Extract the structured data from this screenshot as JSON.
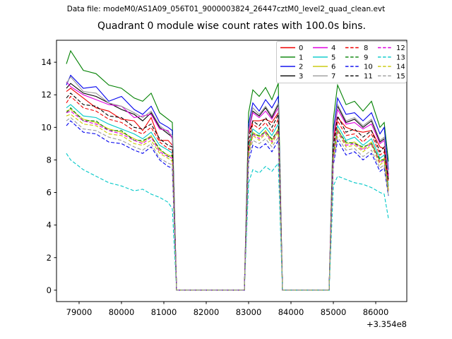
{
  "header": {
    "data_file_label": "Data file: modeM0/AS1A09_056T01_9000003824_26447cztM0_level2_quad_clean.evt"
  },
  "chart": {
    "title": "Quadrant 0 module wise count rates with 100.0s bins."
  },
  "chart_data": {
    "type": "line",
    "title": "Quadrant 0 module wise count rates with 100.0s bins.",
    "xlabel": "",
    "ylabel": "",
    "x_offset_label": "+3.354e8",
    "x_unit_note": "x tick values are seconds offset by +3.354e8",
    "bin_size_s": 100.0,
    "grid": false,
    "legend_position": "upper right",
    "legend_columns": 4,
    "xlim": [
      78467,
      86733
    ],
    "ylim": [
      -0.7,
      15.35
    ],
    "xticks": [
      79000,
      80000,
      81000,
      82000,
      83000,
      84000,
      85000,
      86000
    ],
    "yticks": [
      0,
      2,
      4,
      6,
      8,
      10,
      12,
      14
    ],
    "x": [
      78700,
      78800,
      79100,
      79400,
      79700,
      80000,
      80300,
      80500,
      80700,
      80900,
      81100,
      81200,
      81300,
      82000,
      82900,
      83000,
      83100,
      83250,
      83400,
      83550,
      83700,
      83800,
      84400,
      84900,
      85000,
      85100,
      85300,
      85500,
      85700,
      85900,
      86100,
      86200,
      86300
    ],
    "series": [
      {
        "name": "0",
        "color": "#ee0000",
        "dashed": false,
        "values": [
          12.2,
          12.4,
          11.8,
          11.2,
          11.0,
          10.5,
          10.4,
          9.8,
          10.6,
          9.2,
          9.2,
          8.9,
          0,
          0,
          0,
          9.6,
          10.4,
          10.4,
          10.5,
          10.3,
          10.9,
          0,
          0,
          0,
          9.2,
          10.6,
          10.0,
          9.8,
          9.7,
          9.8,
          8.8,
          8.7,
          6.8
        ]
      },
      {
        "name": "1",
        "color": "#008000",
        "dashed": false,
        "values": [
          13.9,
          14.7,
          13.5,
          13.3,
          12.6,
          12.4,
          11.8,
          11.6,
          12.1,
          10.9,
          10.5,
          10.3,
          0,
          0,
          0,
          10.9,
          12.3,
          11.9,
          12.45,
          11.7,
          12.7,
          0,
          0,
          0,
          10.5,
          12.6,
          11.4,
          11.6,
          11.0,
          11.6,
          10.0,
          10.3,
          7.9
        ]
      },
      {
        "name": "2",
        "color": "#0000ee",
        "dashed": false,
        "values": [
          12.6,
          13.2,
          12.4,
          12.5,
          11.6,
          11.9,
          11.1,
          10.8,
          11.3,
          10.3,
          10.0,
          9.8,
          0,
          0,
          0,
          10.2,
          11.5,
          11.0,
          11.7,
          11.2,
          11.9,
          0,
          0,
          0,
          9.8,
          11.8,
          10.8,
          10.9,
          10.4,
          10.9,
          9.6,
          10.0,
          7.4
        ]
      },
      {
        "name": "3",
        "color": "#000000",
        "dashed": false,
        "values": [
          12.4,
          12.7,
          12.1,
          11.9,
          11.5,
          11.1,
          10.8,
          10.4,
          10.9,
          10.0,
          9.6,
          9.4,
          0,
          0,
          0,
          9.9,
          11.0,
          10.7,
          11.2,
          10.6,
          11.4,
          0,
          0,
          0,
          9.5,
          11.3,
          10.3,
          10.5,
          10.0,
          10.4,
          9.1,
          9.3,
          7.1
        ]
      },
      {
        "name": "4",
        "color": "#e000e0",
        "dashed": false,
        "values": [
          12.8,
          12.5,
          12.0,
          11.7,
          11.4,
          11.3,
          10.6,
          10.7,
          10.8,
          9.9,
          9.8,
          9.3,
          0,
          0,
          0,
          9.7,
          10.9,
          10.6,
          11.0,
          10.5,
          11.2,
          0,
          0,
          0,
          9.4,
          11.1,
          10.2,
          10.3,
          9.9,
          10.2,
          9.0,
          9.2,
          7.0
        ]
      },
      {
        "name": "5",
        "color": "#00c8c8",
        "dashed": false,
        "values": [
          11.2,
          11.4,
          10.7,
          10.6,
          10.2,
          9.9,
          9.6,
          9.3,
          9.7,
          8.9,
          8.6,
          8.4,
          0,
          0,
          0,
          8.8,
          9.9,
          9.6,
          10.0,
          9.5,
          10.2,
          0,
          0,
          0,
          8.5,
          10.1,
          9.2,
          9.4,
          8.9,
          9.3,
          8.1,
          8.3,
          6.4
        ]
      },
      {
        "name": "6",
        "color": "#c8c800",
        "dashed": false,
        "values": [
          11.0,
          11.1,
          10.5,
          10.3,
          9.9,
          9.7,
          9.3,
          9.1,
          9.5,
          8.6,
          8.3,
          8.2,
          0,
          0,
          0,
          8.6,
          9.7,
          9.4,
          9.8,
          9.2,
          9.9,
          0,
          0,
          0,
          8.3,
          9.9,
          9.0,
          9.1,
          8.7,
          9.1,
          7.9,
          8.1,
          6.2
        ]
      },
      {
        "name": "7",
        "color": "#999999",
        "dashed": false,
        "values": [
          12.7,
          13.1,
          12.2,
          12.1,
          11.5,
          11.3,
          10.9,
          10.6,
          11.0,
          10.1,
          9.7,
          9.5,
          0,
          0,
          0,
          9.9,
          11.2,
          10.8,
          11.3,
          10.7,
          11.5,
          0,
          0,
          0,
          9.6,
          11.4,
          10.4,
          10.6,
          10.1,
          10.5,
          9.2,
          9.4,
          7.2
        ]
      },
      {
        "name": "8",
        "color": "#ee0000",
        "dashed": true,
        "values": [
          11.5,
          11.9,
          11.2,
          11.0,
          10.5,
          10.3,
          9.8,
          9.6,
          10.0,
          9.1,
          8.7,
          8.6,
          0,
          0,
          0,
          9.0,
          10.2,
          9.9,
          10.3,
          9.7,
          10.5,
          0,
          0,
          0,
          8.7,
          10.4,
          9.5,
          9.6,
          9.1,
          9.6,
          8.3,
          8.5,
          6.6
        ]
      },
      {
        "name": "9",
        "color": "#008000",
        "dashed": true,
        "values": [
          10.9,
          11.2,
          10.4,
          10.4,
          9.8,
          9.8,
          9.2,
          9.2,
          9.4,
          8.7,
          8.2,
          8.3,
          0,
          0,
          0,
          8.5,
          9.6,
          9.5,
          9.7,
          9.3,
          9.8,
          0,
          0,
          0,
          8.2,
          9.8,
          9.1,
          9.0,
          8.8,
          9.0,
          8.0,
          8.0,
          6.1
        ]
      },
      {
        "name": "10",
        "color": "#0000ee",
        "dashed": true,
        "values": [
          10.1,
          10.4,
          9.7,
          9.6,
          9.1,
          9.0,
          8.6,
          8.4,
          8.8,
          8.0,
          7.6,
          7.5,
          0,
          0,
          0,
          7.9,
          8.9,
          8.7,
          9.0,
          8.5,
          9.2,
          0,
          0,
          0,
          7.7,
          9.2,
          8.3,
          8.5,
          8.0,
          8.4,
          7.3,
          7.5,
          5.8
        ]
      },
      {
        "name": "11",
        "color": "#000000",
        "dashed": true,
        "values": [
          11.8,
          12.1,
          11.4,
          11.3,
          10.7,
          10.6,
          10.0,
          9.9,
          10.2,
          9.3,
          8.9,
          8.8,
          0,
          0,
          0,
          9.3,
          10.4,
          10.1,
          10.6,
          10.0,
          10.8,
          0,
          0,
          0,
          8.9,
          10.7,
          9.7,
          9.9,
          9.4,
          9.8,
          8.5,
          8.8,
          6.7
        ]
      },
      {
        "name": "12",
        "color": "#e000e0",
        "dashed": true,
        "values": [
          10.9,
          11.0,
          10.4,
          10.2,
          9.8,
          9.6,
          9.2,
          9.0,
          9.4,
          8.5,
          8.2,
          8.1,
          0,
          0,
          0,
          8.5,
          9.6,
          9.3,
          9.7,
          9.1,
          9.8,
          0,
          0,
          0,
          8.2,
          9.8,
          8.9,
          9.0,
          8.6,
          9.0,
          7.8,
          8.0,
          6.1
        ]
      },
      {
        "name": "13",
        "color": "#00c8c8",
        "dashed": true,
        "values": [
          8.4,
          8.0,
          7.4,
          7.0,
          6.6,
          6.4,
          6.1,
          6.2,
          5.9,
          5.7,
          5.4,
          5.0,
          0,
          0,
          0,
          6.6,
          7.4,
          7.2,
          7.6,
          7.3,
          7.8,
          0,
          0,
          0,
          6.4,
          7.0,
          6.8,
          6.6,
          6.5,
          6.3,
          6.0,
          5.9,
          4.4
        ]
      },
      {
        "name": "14",
        "color": "#c8c800",
        "dashed": true,
        "values": [
          10.7,
          10.8,
          10.2,
          10.1,
          9.6,
          9.5,
          9.0,
          8.9,
          9.2,
          8.4,
          8.1,
          7.9,
          0,
          0,
          0,
          8.4,
          9.5,
          9.2,
          9.6,
          9.0,
          9.7,
          0,
          0,
          0,
          8.1,
          9.7,
          8.8,
          8.9,
          8.5,
          8.9,
          7.7,
          7.9,
          6.0
        ]
      },
      {
        "name": "15",
        "color": "#999999",
        "dashed": true,
        "values": [
          10.4,
          10.6,
          9.9,
          9.8,
          9.4,
          9.2,
          8.8,
          8.6,
          9.0,
          8.1,
          7.8,
          7.7,
          0,
          0,
          0,
          8.2,
          9.2,
          9.0,
          9.3,
          8.8,
          9.4,
          0,
          0,
          0,
          7.9,
          9.4,
          8.6,
          8.7,
          8.2,
          8.6,
          7.5,
          7.7,
          5.8
        ]
      }
    ]
  }
}
